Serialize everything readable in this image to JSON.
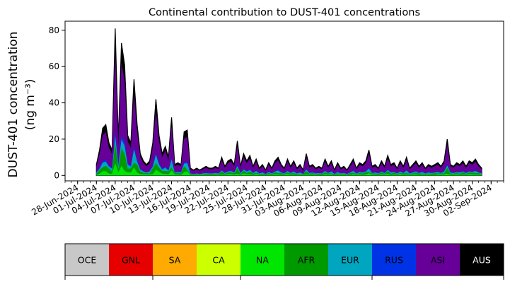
{
  "chart_data": {
    "type": "area",
    "stacked": true,
    "title": "Continental contribution to DUST-401 concentrations",
    "ylabel_line1": "DUST-401 concentration",
    "ylabel_line2": "(ng m⁻³)",
    "xlabel": "",
    "ylim": [
      -3,
      85
    ],
    "yticks": [
      0,
      20,
      40,
      60,
      80
    ],
    "xlim": [
      "2024-06-26",
      "2024-09-04"
    ],
    "xticks": [
      "28-Jun-2024",
      "01-Jul-2024",
      "04-Jul-2024",
      "07-Jul-2024",
      "10-Jul-2024",
      "13-Jul-2024",
      "16-Jul-2024",
      "19-Jul-2024",
      "22-Jul-2024",
      "25-Jul-2024",
      "28-Jul-2024",
      "31-Jul-2024",
      "03-Aug-2024",
      "06-Aug-2024",
      "09-Aug-2024",
      "12-Aug-2024",
      "15-Aug-2024",
      "18-Aug-2024",
      "21-Aug-2024",
      "24-Aug-2024",
      "27-Aug-2024",
      "30-Aug-2024",
      "02-Sep-2024"
    ],
    "grid": false,
    "series_order": [
      "AUS",
      "ASI",
      "RUS",
      "EUR",
      "AFR",
      "NA",
      "CA",
      "SA",
      "GNL",
      "OCE"
    ],
    "total": {
      "x": [
        "2024-07-01",
        "2024-07-01",
        "2024-07-02",
        "2024-07-02",
        "2024-07-03",
        "2024-07-03",
        "2024-07-04",
        "2024-07-04",
        "2024-07-05",
        "2024-07-05",
        "2024-07-06",
        "2024-07-06",
        "2024-07-07",
        "2024-07-07",
        "2024-07-08",
        "2024-07-08",
        "2024-07-09",
        "2024-07-09",
        "2024-07-10",
        "2024-07-10",
        "2024-07-11",
        "2024-07-11",
        "2024-07-12",
        "2024-07-12",
        "2024-07-13",
        "2024-07-13",
        "2024-07-14",
        "2024-07-14",
        "2024-07-15",
        "2024-07-15",
        "2024-07-16",
        "2024-07-16",
        "2024-07-17",
        "2024-07-17",
        "2024-07-18",
        "2024-07-18",
        "2024-07-19",
        "2024-07-19",
        "2024-07-20",
        "2024-07-20",
        "2024-07-21",
        "2024-07-21",
        "2024-07-22",
        "2024-07-22",
        "2024-07-23",
        "2024-07-23",
        "2024-07-24",
        "2024-07-24",
        "2024-07-25",
        "2024-07-25",
        "2024-07-26",
        "2024-07-26",
        "2024-07-27",
        "2024-07-27",
        "2024-07-28",
        "2024-07-28",
        "2024-07-29",
        "2024-07-29",
        "2024-07-30",
        "2024-07-30",
        "2024-07-31",
        "2024-07-31",
        "2024-08-01",
        "2024-08-01",
        "2024-08-02",
        "2024-08-02",
        "2024-08-03",
        "2024-08-03",
        "2024-08-04",
        "2024-08-04",
        "2024-08-05",
        "2024-08-05",
        "2024-08-06",
        "2024-08-06",
        "2024-08-07",
        "2024-08-07",
        "2024-08-08",
        "2024-08-08",
        "2024-08-09",
        "2024-08-09",
        "2024-08-10",
        "2024-08-10",
        "2024-08-11",
        "2024-08-11",
        "2024-08-12",
        "2024-08-12",
        "2024-08-13",
        "2024-08-13",
        "2024-08-14",
        "2024-08-14",
        "2024-08-15",
        "2024-08-15",
        "2024-08-16",
        "2024-08-16",
        "2024-08-17",
        "2024-08-17",
        "2024-08-18",
        "2024-08-18",
        "2024-08-19",
        "2024-08-19",
        "2024-08-20",
        "2024-08-20",
        "2024-08-21",
        "2024-08-21",
        "2024-08-22",
        "2024-08-22",
        "2024-08-23",
        "2024-08-23",
        "2024-08-24",
        "2024-08-24",
        "2024-08-25",
        "2024-08-25",
        "2024-08-26",
        "2024-08-26",
        "2024-08-27",
        "2024-08-27",
        "2024-08-28",
        "2024-08-28",
        "2024-08-29",
        "2024-08-29",
        "2024-08-30",
        "2024-08-30",
        "2024-08-31",
        "2024-08-31"
      ],
      "x_hours": [
        0,
        12,
        0,
        12,
        0,
        12,
        0,
        12,
        0,
        12,
        0,
        12,
        0,
        12,
        0,
        12,
        0,
        12,
        0,
        12,
        0,
        12,
        0,
        12,
        0,
        12,
        0,
        12,
        0,
        12,
        0,
        12,
        0,
        12,
        0,
        12,
        0,
        12,
        0,
        12,
        0,
        12,
        0,
        12,
        0,
        12,
        0,
        12,
        0,
        12,
        0,
        12,
        0,
        12,
        0,
        12,
        0,
        12,
        0,
        12,
        0,
        12,
        0,
        12,
        0,
        12,
        0,
        12,
        0,
        12,
        0,
        12,
        0,
        12,
        0,
        12,
        0,
        12,
        0,
        12,
        0,
        12,
        0,
        12,
        0,
        12,
        0,
        12,
        0,
        12,
        0,
        12,
        0,
        12,
        0,
        12,
        0,
        12,
        0,
        12,
        0,
        12,
        0,
        12,
        0,
        12,
        0,
        12,
        0,
        12,
        0,
        12,
        0,
        12,
        0,
        12,
        0,
        12,
        0,
        12,
        0,
        12,
        0,
        12,
        0,
        12
      ],
      "values": [
        6,
        14,
        26,
        28,
        18,
        14,
        81,
        20,
        73,
        61,
        22,
        18,
        53,
        28,
        12,
        8,
        6,
        8,
        18,
        42,
        22,
        12,
        16,
        10,
        32,
        6,
        7,
        6,
        24,
        25,
        4,
        3,
        4,
        3,
        4,
        5,
        4,
        4,
        5,
        4,
        10,
        5,
        8,
        9,
        6,
        19,
        5,
        12,
        8,
        11,
        5,
        9,
        4,
        6,
        3,
        7,
        4,
        8,
        10,
        6,
        4,
        9,
        5,
        8,
        4,
        6,
        3,
        12,
        5,
        6,
        4,
        5,
        4,
        9,
        5,
        8,
        3,
        7,
        4,
        5,
        3,
        6,
        9,
        4,
        7,
        6,
        8,
        14,
        5,
        6,
        4,
        8,
        5,
        11,
        6,
        7,
        4,
        8,
        5,
        10,
        4,
        6,
        8,
        5,
        7,
        4,
        6,
        5,
        6,
        7,
        5,
        8,
        20,
        6,
        5,
        7,
        6,
        8,
        5,
        8,
        7,
        9,
        6,
        4
      ]
    },
    "share_pattern": {
      "ASI": 0.55,
      "NA": 0.2,
      "AFR": 0.18,
      "EUR": 0.04,
      "RUS": 0.03
    },
    "series": [
      {
        "name": "OCE",
        "color": "#c8c8c8"
      },
      {
        "name": "GNL",
        "color": "#e60000"
      },
      {
        "name": "SA",
        "color": "#ffaa00"
      },
      {
        "name": "CA",
        "color": "#ccff00"
      },
      {
        "name": "NA",
        "color": "#00e600"
      },
      {
        "name": "AFR",
        "color": "#009900"
      },
      {
        "name": "EUR",
        "color": "#00a6bf"
      },
      {
        "name": "RUS",
        "color": "#0033e6"
      },
      {
        "name": "ASI",
        "color": "#660099"
      },
      {
        "name": "AUS",
        "color": "#000000"
      }
    ],
    "colorbar": {
      "labels": [
        "OCE",
        "GNL",
        "SA",
        "CA",
        "NA",
        "AFR",
        "EUR",
        "RUS",
        "ASI",
        "AUS"
      ],
      "label_colors": [
        "#000000",
        "#000000",
        "#000000",
        "#000000",
        "#000000",
        "#000000",
        "#000000",
        "#000000",
        "#000000",
        "#ffffff"
      ]
    }
  }
}
